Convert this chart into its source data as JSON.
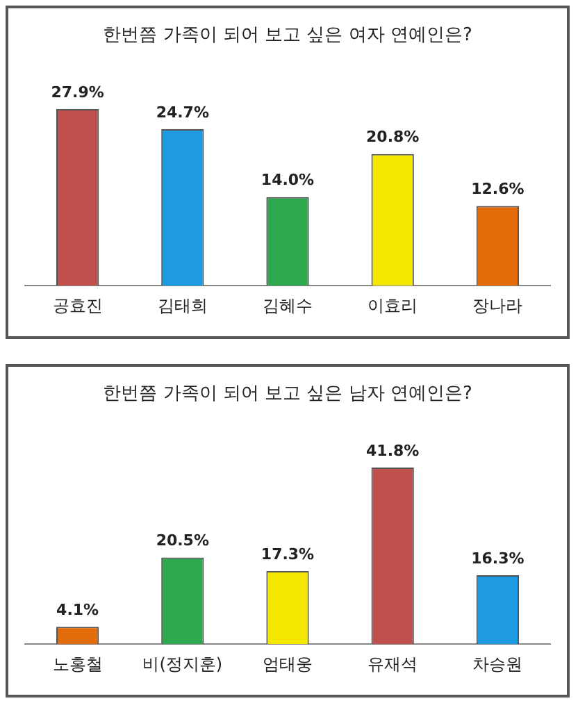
{
  "chart_data": [
    {
      "type": "bar",
      "title": "한번쯤 가족이 되어 보고 싶은 여자 연예인은?",
      "categories": [
        "공효진",
        "김태희",
        "김혜수",
        "이효리",
        "장나라"
      ],
      "values": [
        27.9,
        24.7,
        14.0,
        20.8,
        12.6
      ],
      "colors": [
        "#c0504d",
        "#1e9be0",
        "#2ea84f",
        "#f5e800",
        "#e36c0a"
      ],
      "value_labels": [
        "27.9%",
        "24.7%",
        "14.0%",
        "20.8%",
        "12.6%"
      ],
      "grid": false,
      "legend": false
    },
    {
      "type": "bar",
      "title": "한번쯤 가족이 되어 보고 싶은 남자 연예인은?",
      "categories": [
        "노홍철",
        "비(정지훈)",
        "엄태웅",
        "유재석",
        "차승원"
      ],
      "values": [
        4.1,
        20.5,
        17.3,
        41.8,
        16.3
      ],
      "colors": [
        "#e36c0a",
        "#2ea84f",
        "#f5e800",
        "#c0504d",
        "#1e9be0"
      ],
      "value_labels": [
        "4.1%",
        "20.5%",
        "17.3%",
        "41.8%",
        "16.3%"
      ],
      "grid": false,
      "legend": false
    }
  ]
}
